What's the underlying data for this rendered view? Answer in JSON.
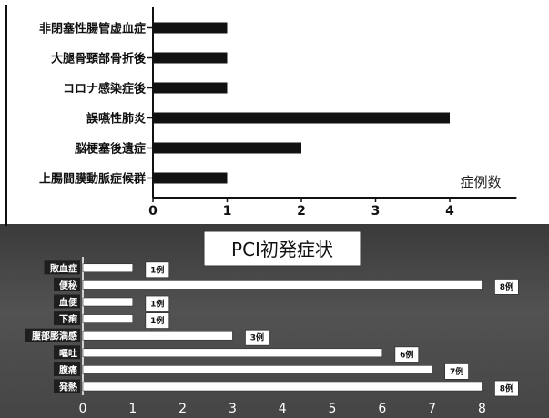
{
  "chart_data": [
    {
      "type": "bar",
      "orientation": "horizontal",
      "categories": [
        "非閉塞性腸管虚血症",
        "大腿骨頸部骨折後",
        "コロナ感染症後",
        "誤嚥性肺炎",
        "脳梗塞後遺症",
        "上腸間膜動脈症候群"
      ],
      "values": [
        1,
        1,
        1,
        4,
        2,
        1
      ],
      "xlabel": "症例数",
      "ticks": [
        "0",
        "1",
        "2",
        "3",
        "4"
      ],
      "xlim": [
        0,
        4.9
      ],
      "bar_color": "#111111"
    },
    {
      "type": "bar",
      "orientation": "horizontal",
      "title": "PCI初発症状",
      "categories": [
        "敗血症",
        "便秘",
        "血便",
        "下痢",
        "腹部膨満感",
        "嘔吐",
        "腹痛",
        "発熱"
      ],
      "values": [
        1,
        8,
        1,
        1,
        3,
        6,
        7,
        8
      ],
      "data_labels": [
        "1例",
        "8例",
        "1例",
        "1例",
        "3例",
        "6例",
        "7例",
        "8例"
      ],
      "ticks": [
        "0",
        "1",
        "2",
        "3",
        "4",
        "5",
        "6",
        "7",
        "8"
      ],
      "xlim": [
        0,
        8
      ],
      "bar_color": "#ffffff"
    }
  ]
}
